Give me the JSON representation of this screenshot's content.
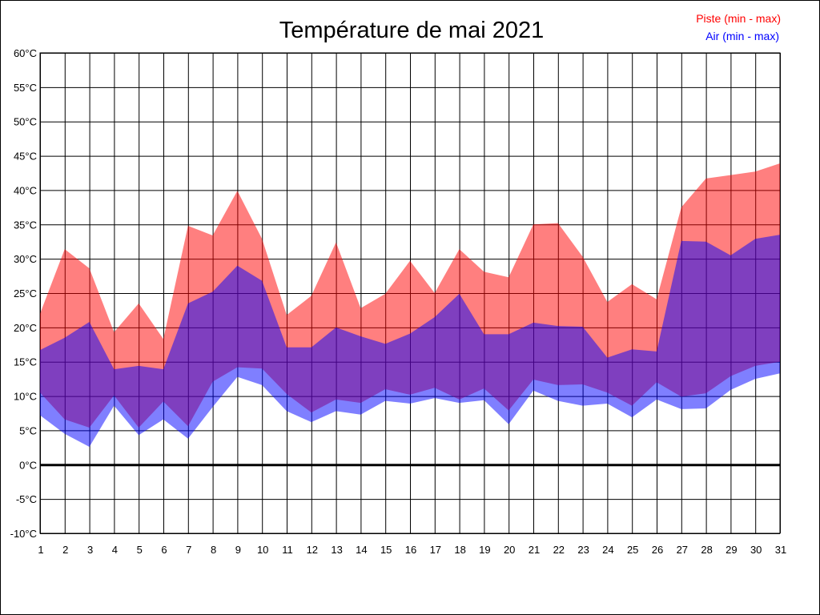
{
  "chart_data": {
    "type": "area",
    "title": "Température de mai 2021",
    "xlabel": "",
    "ylabel": "",
    "unit": "°C",
    "ylim": [
      -10,
      60
    ],
    "xlim": [
      1,
      31
    ],
    "grid": true,
    "legend_position": "top-right",
    "x": [
      1,
      2,
      3,
      4,
      5,
      6,
      7,
      8,
      9,
      10,
      11,
      12,
      13,
      14,
      15,
      16,
      17,
      18,
      19,
      20,
      21,
      22,
      23,
      24,
      25,
      26,
      27,
      28,
      29,
      30,
      31
    ],
    "y_ticks": [
      "60°C",
      "55°C",
      "50°C",
      "45°C",
      "40°C",
      "35°C",
      "30°C",
      "25°C",
      "20°C",
      "15°C",
      "10°C",
      "5°C",
      "0°C",
      "-5°C",
      "-10°C"
    ],
    "x_ticks": [
      "1",
      "2",
      "3",
      "4",
      "5",
      "6",
      "7",
      "8",
      "9",
      "10",
      "11",
      "12",
      "13",
      "14",
      "15",
      "16",
      "17",
      "18",
      "19",
      "20",
      "21",
      "22",
      "23",
      "24",
      "25",
      "26",
      "27",
      "28",
      "29",
      "30",
      "31"
    ],
    "series": [
      {
        "name": "Piste (min - max)",
        "color": "#ff0000",
        "min": [
          10.5,
          6.6,
          5.4,
          10.1,
          5.4,
          9.2,
          5.6,
          12.1,
          14.2,
          14.0,
          10.3,
          7.6,
          9.5,
          9.0,
          11.0,
          10.2,
          11.2,
          9.5,
          11.1,
          7.9,
          12.4,
          11.6,
          11.7,
          10.5,
          8.6,
          12.0,
          9.9,
          10.4,
          12.9,
          14.4,
          15.0
        ],
        "max": [
          22.0,
          31.4,
          28.6,
          19.3,
          23.5,
          18.3,
          34.8,
          33.4,
          39.9,
          32.9,
          21.8,
          24.6,
          32.4,
          22.8,
          24.9,
          29.7,
          25.0,
          31.4,
          28.1,
          27.3,
          35.0,
          35.2,
          30.3,
          23.7,
          26.3,
          24.1,
          37.5,
          41.7,
          42.2,
          42.7,
          43.9
        ]
      },
      {
        "name": "Air (min - max)",
        "color": "#0000ff",
        "min": [
          7.2,
          4.5,
          2.6,
          8.6,
          4.3,
          6.6,
          3.8,
          8.4,
          12.8,
          11.6,
          7.8,
          6.2,
          7.8,
          7.3,
          9.3,
          8.9,
          9.7,
          9.0,
          9.4,
          5.9,
          10.8,
          9.3,
          8.6,
          8.9,
          6.9,
          9.5,
          8.1,
          8.2,
          10.9,
          12.5,
          13.3
        ],
        "max": [
          16.7,
          18.5,
          20.8,
          13.9,
          14.4,
          13.9,
          23.5,
          25.2,
          29.0,
          26.8,
          17.1,
          17.1,
          20.0,
          18.7,
          17.6,
          19.1,
          21.5,
          24.9,
          19.0,
          19.0,
          20.7,
          20.2,
          20.1,
          15.6,
          16.8,
          16.5,
          32.6,
          32.5,
          30.5,
          32.9,
          33.5
        ]
      }
    ]
  }
}
